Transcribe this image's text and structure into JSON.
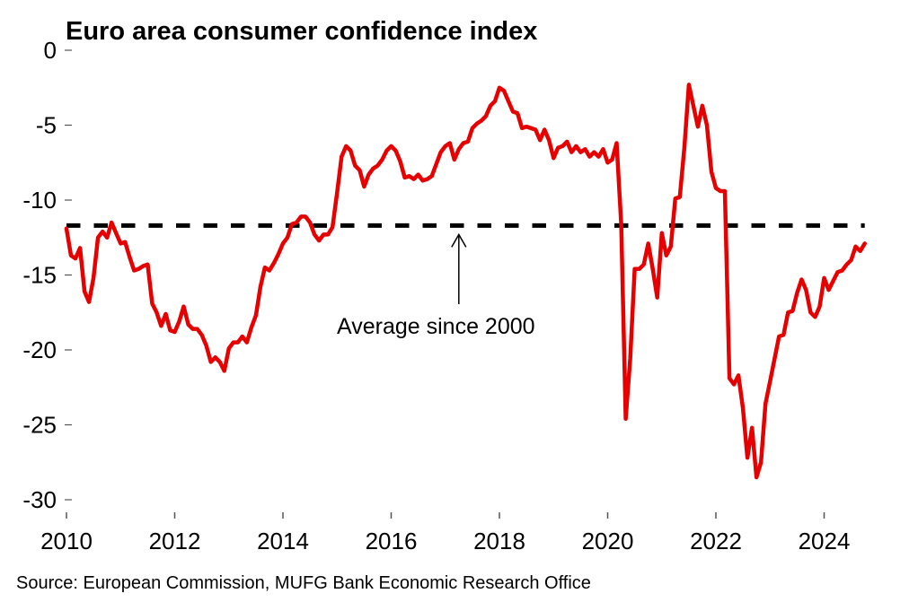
{
  "chart_data": {
    "type": "line",
    "title": "Euro area consumer confidence index",
    "xlabel": "",
    "ylabel": "",
    "source": "Source: European Commission, MUFG Bank Economic Research Office",
    "x_start": "2010-01",
    "x_frequency": "monthly",
    "xlim": [
      2010,
      2025.2
    ],
    "ylim": [
      -30,
      0
    ],
    "y_ticks": [
      0,
      -5,
      -10,
      -15,
      -20,
      -25,
      -30
    ],
    "y_tick_labels": [
      "0",
      "-5",
      "-10",
      "-15",
      "-20",
      "-25",
      "-30"
    ],
    "x_ticks": [
      2010,
      2012,
      2014,
      2016,
      2018,
      2020,
      2022,
      2024
    ],
    "x_tick_labels": [
      "2010",
      "2012",
      "2014",
      "2016",
      "2018",
      "2020",
      "2022",
      "2024"
    ],
    "grid": false,
    "series": [
      {
        "name": "Euro area consumer confidence index",
        "color": "#e60000",
        "values": [
          -11.9,
          -13.7,
          -13.9,
          -13.2,
          -16.1,
          -16.8,
          -15.2,
          -12.5,
          -12.1,
          -12.5,
          -11.5,
          -12.2,
          -12.9,
          -12.8,
          -13.8,
          -14.7,
          -14.6,
          -14.4,
          -14.3,
          -16.9,
          -17.5,
          -18.4,
          -17.6,
          -18.7,
          -18.8,
          -18.1,
          -17.1,
          -18.3,
          -18.6,
          -18.6,
          -19.0,
          -19.7,
          -20.8,
          -20.5,
          -20.8,
          -21.4,
          -19.9,
          -19.5,
          -19.5,
          -19.1,
          -19.5,
          -18.5,
          -17.7,
          -15.8,
          -14.5,
          -14.7,
          -14.2,
          -13.6,
          -12.9,
          -12.5,
          -11.6,
          -11.5,
          -11.1,
          -11.1,
          -11.5,
          -12.3,
          -12.7,
          -12.3,
          -12.3,
          -11.8,
          -9.5,
          -7.1,
          -6.4,
          -6.7,
          -7.7,
          -8.0,
          -9.1,
          -8.3,
          -7.9,
          -7.7,
          -7.3,
          -6.7,
          -6.4,
          -6.7,
          -7.4,
          -8.5,
          -8.4,
          -8.6,
          -8.3,
          -8.7,
          -8.6,
          -8.4,
          -7.6,
          -6.8,
          -6.4,
          -6.2,
          -7.3,
          -6.6,
          -6.2,
          -6.1,
          -5.2,
          -4.9,
          -4.7,
          -4.4,
          -3.7,
          -3.4,
          -2.5,
          -2.7,
          -3.4,
          -4.1,
          -4.2,
          -5.2,
          -5.1,
          -5.2,
          -5.3,
          -6.0,
          -5.3,
          -6.0,
          -7.2,
          -6.5,
          -6.4,
          -6.1,
          -6.8,
          -6.4,
          -6.8,
          -6.6,
          -7.1,
          -6.8,
          -7.1,
          -6.6,
          -7.5,
          -7.3,
          -6.2,
          -11.6,
          -24.6,
          -20.6,
          -14.6,
          -14.6,
          -14.3,
          -12.9,
          -14.6,
          -16.5,
          -12.2,
          -13.7,
          -13.1,
          -9.9,
          -9.8,
          -6.5,
          -2.3,
          -3.7,
          -5.1,
          -3.7,
          -5.0,
          -8.1,
          -9.2,
          -9.4,
          -9.4,
          -21.9,
          -22.3,
          -21.7,
          -23.9,
          -27.2,
          -25.2,
          -28.5,
          -27.5,
          -23.6,
          -22.1,
          -20.6,
          -19.1,
          -19.0,
          -17.5,
          -17.4,
          -16.2,
          -15.3,
          -16.0,
          -17.5,
          -17.8,
          -17.1,
          -15.2,
          -16.0,
          -15.4,
          -14.8,
          -14.7,
          -14.3,
          -14.0,
          -13.1,
          -13.4,
          -12.9
        ]
      }
    ],
    "reference_line": {
      "label": "Average since 2000",
      "value": -11.7,
      "style": "dashed",
      "color": "#000000"
    },
    "annotation": {
      "text": "Average since 2000",
      "arrow_to_x": 2017.25
    }
  }
}
